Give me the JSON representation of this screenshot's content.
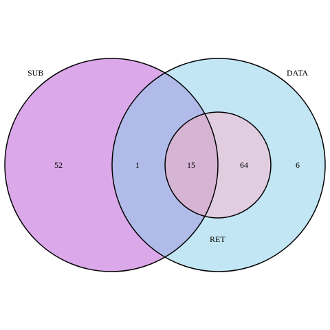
{
  "diagram": {
    "type": "venn",
    "sets": [
      {
        "key": "sub",
        "label": "SUB",
        "fill": "#dba9e9"
      },
      {
        "key": "data",
        "label": "DATA",
        "fill": "#c3e6f4"
      },
      {
        "key": "ret",
        "label": "RET",
        "fill": "#e1cde0"
      }
    ],
    "overlap_fills": {
      "sub_data": "#b1bbe9",
      "sub_data_ret": "#d6b4d4"
    },
    "outline_color": "#000000",
    "regions": {
      "sub_only": "52",
      "sub_data": "1",
      "sub_data_ret": "15",
      "data_ret": "64",
      "data_only": "6"
    }
  }
}
